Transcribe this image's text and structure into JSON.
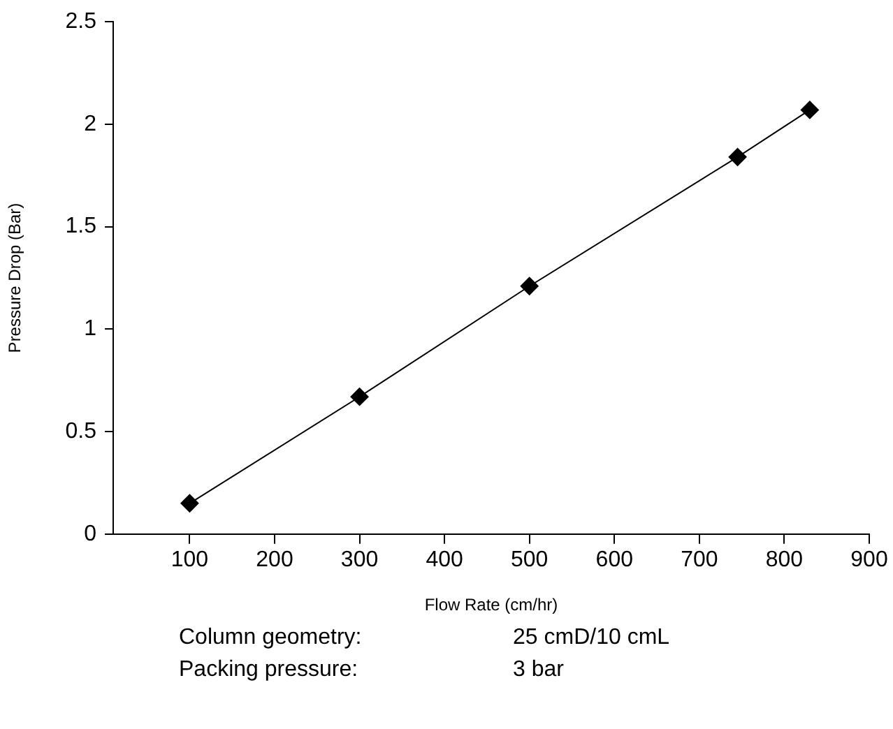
{
  "chart_data": {
    "type": "line",
    "xlabel": "Flow Rate (cm/hr)",
    "ylabel": "Pressure Drop (Bar)",
    "x": [
      100,
      300,
      500,
      745,
      830
    ],
    "series": [
      {
        "color": "#000000",
        "values": [
          0.15,
          0.67,
          1.21,
          1.84,
          2.07
        ]
      }
    ],
    "xlim": [
      10,
      900
    ],
    "xticks": [
      100,
      200,
      300,
      400,
      500,
      600,
      700,
      800,
      900
    ],
    "ylim": [
      0,
      2.5
    ],
    "yticks": [
      0,
      0.5,
      1,
      1.5,
      2,
      2.5
    ],
    "marker": "diamond",
    "line_style": "solid",
    "grid": false,
    "legend": false,
    "annotations": [
      "Column geometry:",
      "25 cmD/10 cmL",
      "Packing pressure:",
      "3 bar"
    ]
  }
}
